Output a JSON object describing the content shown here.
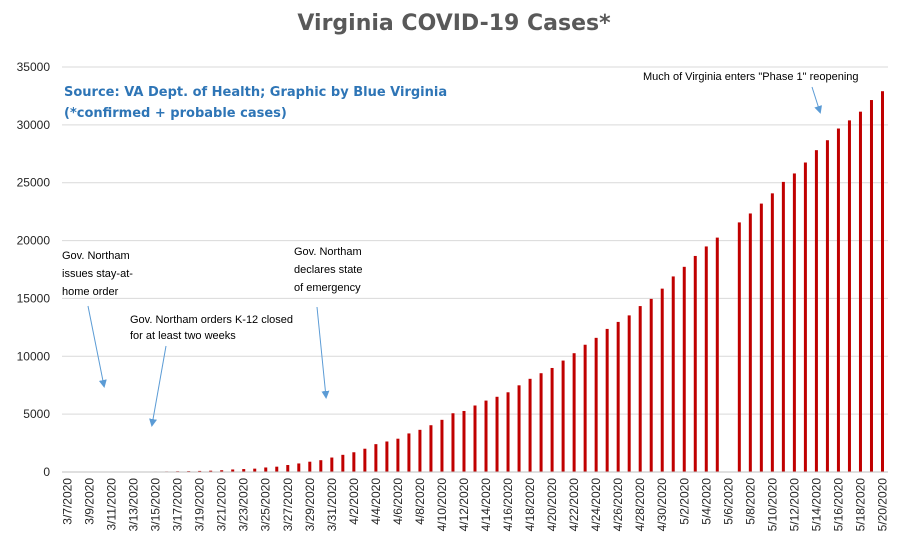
{
  "chart_data": {
    "type": "bar",
    "title": "Virginia COVID-19 Cases*",
    "source_line1": "Source: VA Dept. of Health; Graphic by Blue Virginia",
    "source_line2": "(*confirmed + probable cases)",
    "ylim": [
      0,
      35000
    ],
    "yticks": [
      "0",
      "5000",
      "10000",
      "15000",
      "20000",
      "25000",
      "30000",
      "35000"
    ],
    "grid": true,
    "bar_color": "#c00000",
    "annotation_color": "#5b9bd5",
    "dates": [
      "3/7/2020",
      "3/8/2020",
      "3/9/2020",
      "3/10/2020",
      "3/11/2020",
      "3/12/2020",
      "3/13/2020",
      "3/14/2020",
      "3/15/2020",
      "3/16/2020",
      "3/17/2020",
      "3/18/2020",
      "3/19/2020",
      "3/20/2020",
      "3/21/2020",
      "3/22/2020",
      "3/23/2020",
      "3/24/2020",
      "3/25/2020",
      "3/26/2020",
      "3/27/2020",
      "3/28/2020",
      "3/29/2020",
      "3/30/2020",
      "3/31/2020",
      "4/1/2020",
      "4/2/2020",
      "4/3/2020",
      "4/4/2020",
      "4/5/2020",
      "4/6/2020",
      "4/7/2020",
      "4/8/2020",
      "4/9/2020",
      "4/10/2020",
      "4/11/2020",
      "4/12/2020",
      "4/13/2020",
      "4/14/2020",
      "4/15/2020",
      "4/16/2020",
      "4/17/2020",
      "4/18/2020",
      "4/19/2020",
      "4/20/2020",
      "4/21/2020",
      "4/22/2020",
      "4/23/2020",
      "4/24/2020",
      "4/25/2020",
      "4/26/2020",
      "4/27/2020",
      "4/28/2020",
      "4/29/2020",
      "4/30/2020",
      "5/1/2020",
      "5/2/2020",
      "5/3/2020",
      "5/4/2020",
      "5/5/2020",
      "5/6/2020",
      "5/7/2020",
      "5/8/2020",
      "5/9/2020",
      "5/10/2020",
      "5/11/2020",
      "5/12/2020",
      "5/13/2020",
      "5/14/2020",
      "5/15/2020",
      "5/16/2020",
      "5/17/2020",
      "5/18/2020",
      "5/19/2020",
      "5/20/2020"
    ],
    "xtick_labels": [
      "3/7/2020",
      "3/9/2020",
      "3/11/2020",
      "3/13/2020",
      "3/15/2020",
      "3/17/2020",
      "3/19/2020",
      "3/21/2020",
      "3/23/2020",
      "3/25/2020",
      "3/27/2020",
      "3/29/2020",
      "3/31/2020",
      "4/2/2020",
      "4/4/2020",
      "4/6/2020",
      "4/8/2020",
      "4/10/2020",
      "4/12/2020",
      "4/14/2020",
      "4/16/2020",
      "4/18/2020",
      "4/20/2020",
      "4/22/2020",
      "4/24/2020",
      "4/26/2020",
      "4/28/2020",
      "4/30/2020",
      "5/2/2020",
      "5/4/2020",
      "5/6/2020",
      "5/8/2020",
      "5/10/2020",
      "5/12/2020",
      "5/14/2020",
      "5/16/2020",
      "5/18/2020",
      "5/20/2020"
    ],
    "values": [
      2,
      3,
      3,
      7,
      9,
      17,
      30,
      41,
      45,
      51,
      67,
      77,
      94,
      114,
      152,
      219,
      254,
      290,
      391,
      460,
      604,
      739,
      890,
      1020,
      1250,
      1484,
      1706,
      2012,
      2407,
      2637,
      2878,
      3333,
      3645,
      4042,
      4509,
      5077,
      5274,
      5747,
      6171,
      6500,
      6889,
      7491,
      8053,
      8537,
      8990,
      9630,
      10266,
      10998,
      11594,
      12366,
      12970,
      13535,
      14339,
      14961,
      15846,
      16901,
      17731,
      18671,
      19492,
      20256,
      0,
      21570,
      22342,
      23196,
      24081,
      25070,
      25800,
      26746,
      27813,
      28672,
      29683,
      30388,
      31140,
      32145,
      32908
    ],
    "annotations": [
      {
        "lines": [
          "Gov. Northam",
          "issues stay-at-",
          "home order"
        ]
      },
      {
        "lines": [
          "Gov. Northam orders K-12 closed",
          "for at least two weeks"
        ]
      },
      {
        "lines": [
          "Gov. Northam",
          "declares state",
          "of emergency"
        ]
      },
      {
        "lines": [
          "Much of Virginia enters \"Phase 1\" reopening"
        ]
      }
    ]
  }
}
